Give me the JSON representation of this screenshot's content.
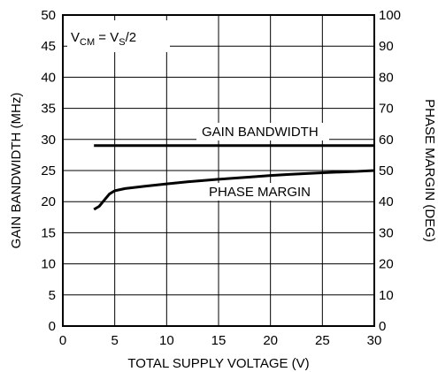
{
  "chart_data": {
    "type": "line",
    "title": "",
    "xlabel": "TOTAL SUPPLY VOLTAGE (V)",
    "ylabel": "GAIN BANDWIDTH (MHz)",
    "y2label": "PHASE MARGIN (DEG)",
    "xlim": [
      0,
      30
    ],
    "ylim": [
      0,
      50
    ],
    "y2lim": [
      0,
      100
    ],
    "x_ticks": [
      0,
      5,
      10,
      15,
      20,
      25,
      30
    ],
    "y_ticks": [
      0,
      5,
      10,
      15,
      20,
      25,
      30,
      35,
      40,
      45,
      50
    ],
    "y2_ticks": [
      0,
      10,
      20,
      30,
      40,
      50,
      60,
      70,
      80,
      90,
      100
    ],
    "grid": true,
    "annotation": {
      "main": "V",
      "sub1": "CM",
      "mid": " = V",
      "sub2": "S",
      "tail": "/2"
    },
    "series": [
      {
        "name": "GAIN BANDWIDTH",
        "axis": "left",
        "x": [
          3,
          30
        ],
        "y": [
          29,
          29
        ]
      },
      {
        "name": "PHASE MARGIN",
        "axis": "right",
        "x": [
          3,
          3.5,
          4,
          4.5,
          5,
          6,
          8,
          10,
          12,
          15,
          18,
          20,
          22,
          25,
          28,
          30
        ],
        "y": [
          37.5,
          38.5,
          40.5,
          42.5,
          43.5,
          44.2,
          45,
          45.7,
          46.4,
          47.2,
          47.9,
          48.4,
          48.8,
          49.3,
          49.7,
          50
        ]
      }
    ]
  }
}
